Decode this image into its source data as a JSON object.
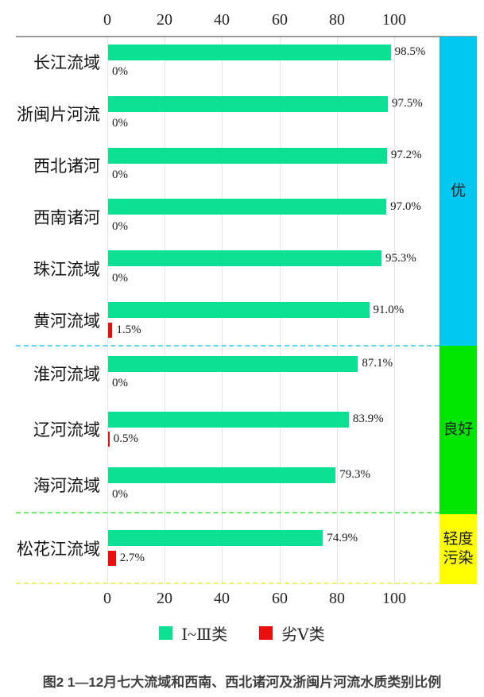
{
  "chart_data": {
    "type": "bar",
    "orientation": "horizontal",
    "title": "图2  1—12月七大流域和西南、西北诸河及浙闽片河流水质类别比例",
    "xlim": [
      0,
      100
    ],
    "grid": true,
    "axis_ticks": [
      "0",
      "20",
      "40",
      "60",
      "80",
      "100"
    ],
    "legend": [
      {
        "label": "Ⅰ~Ⅲ类",
        "color": "#0be093"
      },
      {
        "label": "劣Ⅴ类",
        "color": "#e90f0f"
      }
    ],
    "colors": {
      "green_bar": "#0be093",
      "red_bar": "#e90f0f",
      "band_excellent": "#00c8f0",
      "band_good": "#00e600",
      "band_light_pollution": "#ffff00"
    },
    "sections": [
      {
        "label": "优",
        "rows": 6
      },
      {
        "label": "良好",
        "rows": 3
      },
      {
        "label": "轻度污染",
        "rows": 1
      }
    ],
    "rows": [
      {
        "label": "长江流域",
        "green": 98.5,
        "green_label": "98.5%",
        "red": 0,
        "red_label": "0%",
        "section": "优"
      },
      {
        "label": "浙闽片河流",
        "green": 97.5,
        "green_label": "97.5%",
        "red": 0,
        "red_label": "0%",
        "section": "优"
      },
      {
        "label": "西北诸河",
        "green": 97.2,
        "green_label": "97.2%",
        "red": 0,
        "red_label": "0%",
        "section": "优"
      },
      {
        "label": "西南诸河",
        "green": 97.0,
        "green_label": "97.0%",
        "red": 0,
        "red_label": "0%",
        "section": "优"
      },
      {
        "label": "珠江流域",
        "green": 95.3,
        "green_label": "95.3%",
        "red": 0,
        "red_label": "0%",
        "section": "优"
      },
      {
        "label": "黄河流域",
        "green": 91.0,
        "green_label": "91.0%",
        "red": 1.5,
        "red_label": "1.5%",
        "section": "优"
      },
      {
        "label": "淮河流域",
        "green": 87.1,
        "green_label": "87.1%",
        "red": 0,
        "red_label": "0%",
        "section": "良好"
      },
      {
        "label": "辽河流域",
        "green": 83.9,
        "green_label": "83.9%",
        "red": 0.5,
        "red_label": "0.5%",
        "section": "良好"
      },
      {
        "label": "海河流域",
        "green": 79.3,
        "green_label": "79.3%",
        "red": 0,
        "red_label": "0%",
        "section": "良好"
      },
      {
        "label": "松花江流域",
        "green": 74.9,
        "green_label": "74.9%",
        "red": 2.7,
        "red_label": "2.7%",
        "section": "轻度污染"
      }
    ]
  }
}
